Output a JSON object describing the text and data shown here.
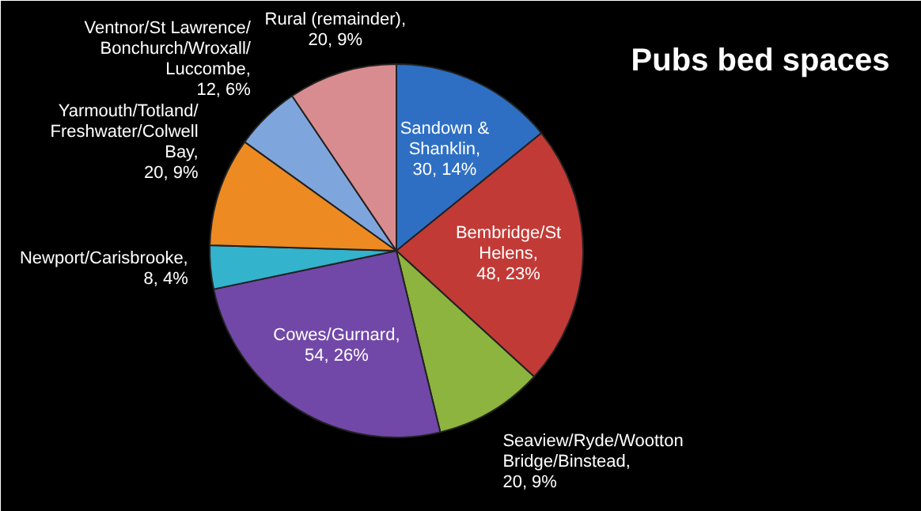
{
  "chart_data": {
    "type": "pie",
    "title": "Pubs bed spaces",
    "categories": [
      "Sandown & Shanklin",
      "Bembridge/St Helens",
      "Seaview/Ryde/Wootton Bridge/Binstead",
      "Cowes/Gurnard",
      "Newport/Carisbrooke",
      "Yarmouth/Totland/Freshwater/Colwell Bay",
      "Ventnor/St Lawrence/Bonchurch/Wroxall/Luccombe",
      "Rural (remainder)"
    ],
    "values": [
      30,
      48,
      20,
      54,
      8,
      20,
      12,
      20
    ],
    "value_labels": [
      ", 30, 14%",
      ", 48, 23%",
      ", 20, 9%",
      ", 54, 26%",
      ", 8, 4%",
      ", 20, 9%",
      ", 12, 6%",
      ", 20, 9%"
    ],
    "colors": [
      "#2e6fc4",
      "#c23a36",
      "#8db43e",
      "#7148a8",
      "#33b3cc",
      "#ee8a22",
      "#7fa6dc",
      "#d98c8f"
    ],
    "legend": false
  }
}
